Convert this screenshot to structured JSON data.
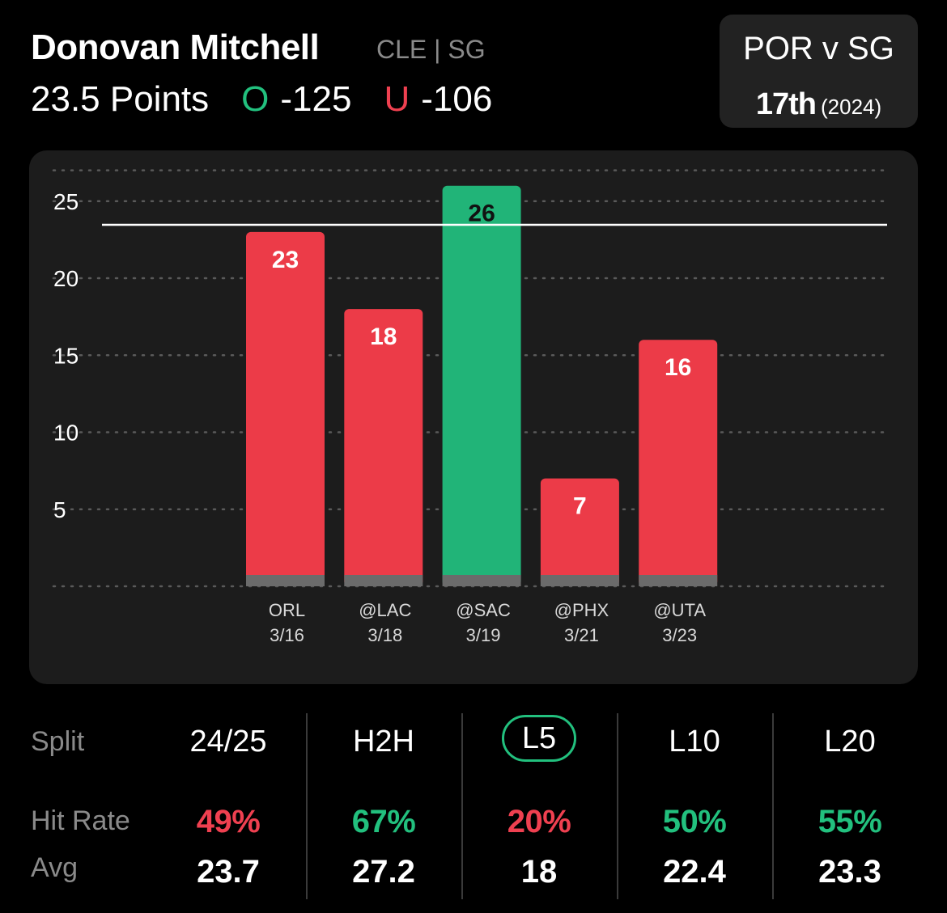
{
  "header": {
    "player_name": "Donovan Mitchell",
    "team_position": "CLE | SG",
    "prop_line": "23.5 Points",
    "over_label": "O",
    "over_odds": "-125",
    "under_label": "U",
    "under_odds": "-106"
  },
  "matchup": {
    "title": "POR v SG",
    "rank": "17th",
    "season": "(2024)"
  },
  "colors": {
    "over": "#22c07e",
    "under": "#ef4050",
    "bar_hit": "#21b478",
    "bar_miss": "#ec3b48",
    "panel": "#1c1c1c"
  },
  "chart_data": {
    "type": "bar",
    "categories": [
      {
        "opponent": "ORL",
        "date": "3/16"
      },
      {
        "opponent": "@LAC",
        "date": "3/18"
      },
      {
        "opponent": "@SAC",
        "date": "3/19"
      },
      {
        "opponent": "@PHX",
        "date": "3/21"
      },
      {
        "opponent": "@UTA",
        "date": "3/23"
      }
    ],
    "values": [
      23,
      18,
      26,
      7,
      16
    ],
    "hit": [
      false,
      false,
      true,
      false,
      false
    ],
    "line_value": 23.5,
    "yticks": [
      5,
      10,
      15,
      20,
      25
    ],
    "ylim": [
      0,
      27
    ],
    "grid": true
  },
  "stats": {
    "split_label": "Split",
    "hit_rate_label": "Hit Rate",
    "avg_label": "Avg",
    "columns": [
      {
        "split": "24/25",
        "hit_rate": "49%",
        "hit": false,
        "avg": "23.7",
        "active": false
      },
      {
        "split": "H2H",
        "hit_rate": "67%",
        "hit": true,
        "avg": "27.2",
        "active": false
      },
      {
        "split": "L5",
        "hit_rate": "20%",
        "hit": false,
        "avg": "18",
        "active": true
      },
      {
        "split": "L10",
        "hit_rate": "50%",
        "hit": true,
        "avg": "22.4",
        "active": false
      },
      {
        "split": "L20",
        "hit_rate": "55%",
        "hit": true,
        "avg": "23.3",
        "active": false
      }
    ]
  }
}
